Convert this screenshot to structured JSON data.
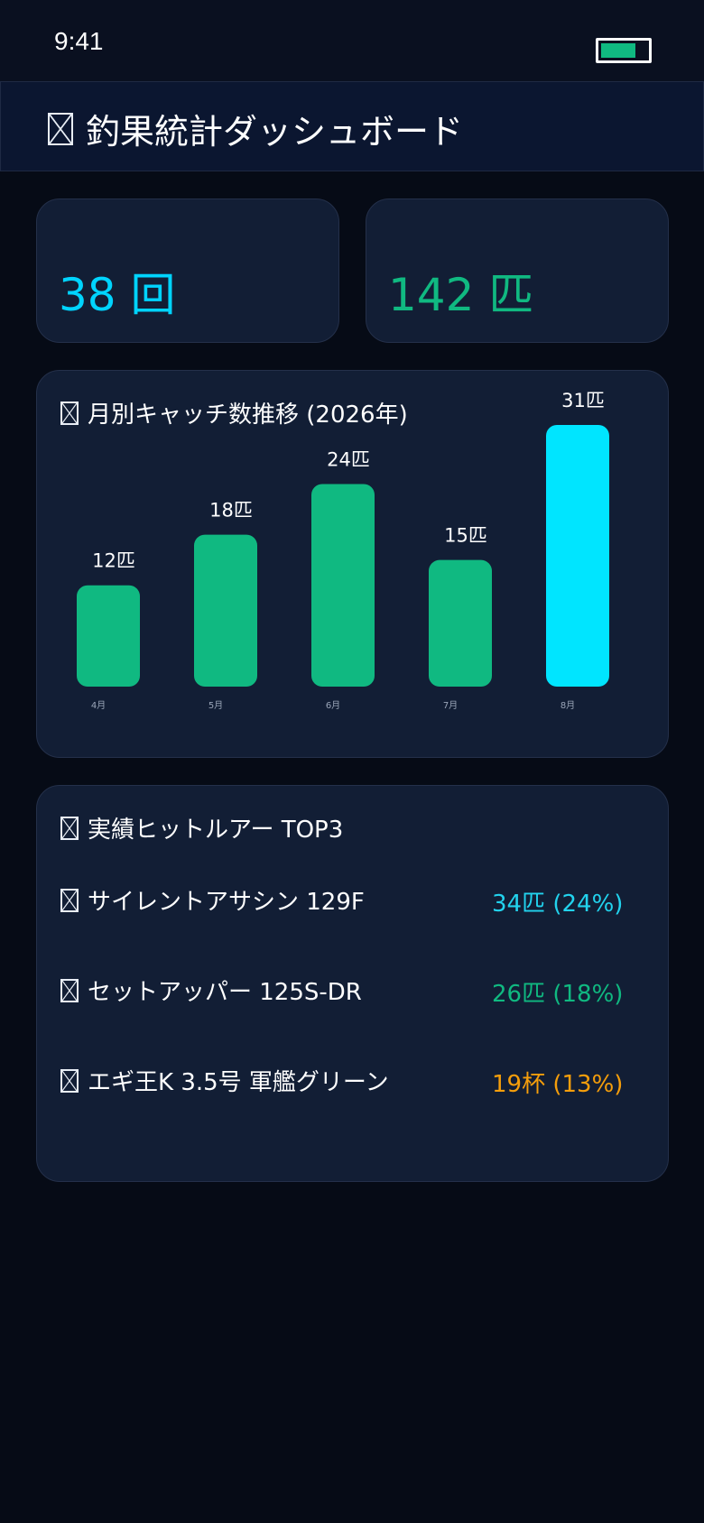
{
  "status_bar": {
    "time": "9:41",
    "battery_level": 0.75,
    "battery_color": "#10b981"
  },
  "header": {
    "icon": "box-icon",
    "title": "釣果統計ダッシュボード"
  },
  "stats": [
    {
      "label": "",
      "value": "38 回",
      "color": "#00d4ff"
    },
    {
      "label": "",
      "value": "142 匹",
      "color": "#10b981"
    }
  ],
  "monthly_chart": {
    "icon": "box-icon",
    "title": "月別キャッチ数推移 (2026年)"
  },
  "chart_data": {
    "type": "bar",
    "title": "月別キャッチ数推移 (2026年)",
    "categories": [
      "4月",
      "5月",
      "6月",
      "7月",
      "8月"
    ],
    "values": [
      12,
      18,
      24,
      15,
      31
    ],
    "value_labels": [
      "12匹",
      "18匹",
      "24匹",
      "15匹",
      "31匹"
    ],
    "unit": "匹",
    "ylim": [
      0,
      31
    ],
    "grid": false,
    "colors": [
      "#10b981",
      "#10b981",
      "#10b981",
      "#10b981",
      "#00e5ff"
    ]
  },
  "top_lures": {
    "icon": "box-icon",
    "title": "実績ヒットルアー TOP3",
    "items": [
      {
        "icon": "box-icon",
        "name": "サイレントアサシン 129F",
        "stat": "34匹 (24%)",
        "color": "#22d3ee"
      },
      {
        "icon": "box-icon",
        "name": "セットアッパー 125S-DR",
        "stat": "26匹 (18%)",
        "color": "#10b981"
      },
      {
        "icon": "box-icon",
        "name": "エギ王K 3.5号 軍艦グリーン",
        "stat": "19杯 (13%)",
        "color": "#f59e0b"
      }
    ]
  }
}
